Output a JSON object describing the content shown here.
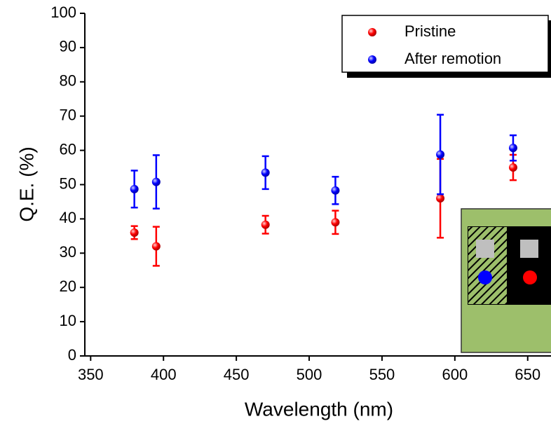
{
  "chart_data": {
    "type": "scatter",
    "x_label": "Wavelength (nm)",
    "y_label": "Q.E. (%)",
    "xlim": [
      346,
      666
    ],
    "ylim": [
      0,
      100
    ],
    "xticks": [
      350,
      400,
      450,
      500,
      550,
      600,
      650
    ],
    "yticks": [
      0,
      10,
      20,
      30,
      40,
      50,
      60,
      70,
      80,
      90,
      100
    ],
    "legend": "upper right",
    "series": [
      {
        "name": "Pristine",
        "color": "#ff0000",
        "x": [
          380,
          395,
          470,
          518,
          590,
          640
        ],
        "values": [
          36,
          32,
          38.3,
          39,
          46,
          55
        ],
        "errors": [
          1.9,
          5.7,
          2.6,
          3.4,
          11.5,
          3.7
        ]
      },
      {
        "name": "After remotion",
        "color": "#0000ff",
        "x": [
          380,
          395,
          470,
          518,
          590,
          640
        ],
        "values": [
          48.7,
          50.8,
          53.5,
          48.3,
          58.8,
          60.7
        ],
        "errors": [
          5.4,
          7.8,
          4.8,
          4,
          11.6,
          3.7
        ]
      }
    ]
  }
}
